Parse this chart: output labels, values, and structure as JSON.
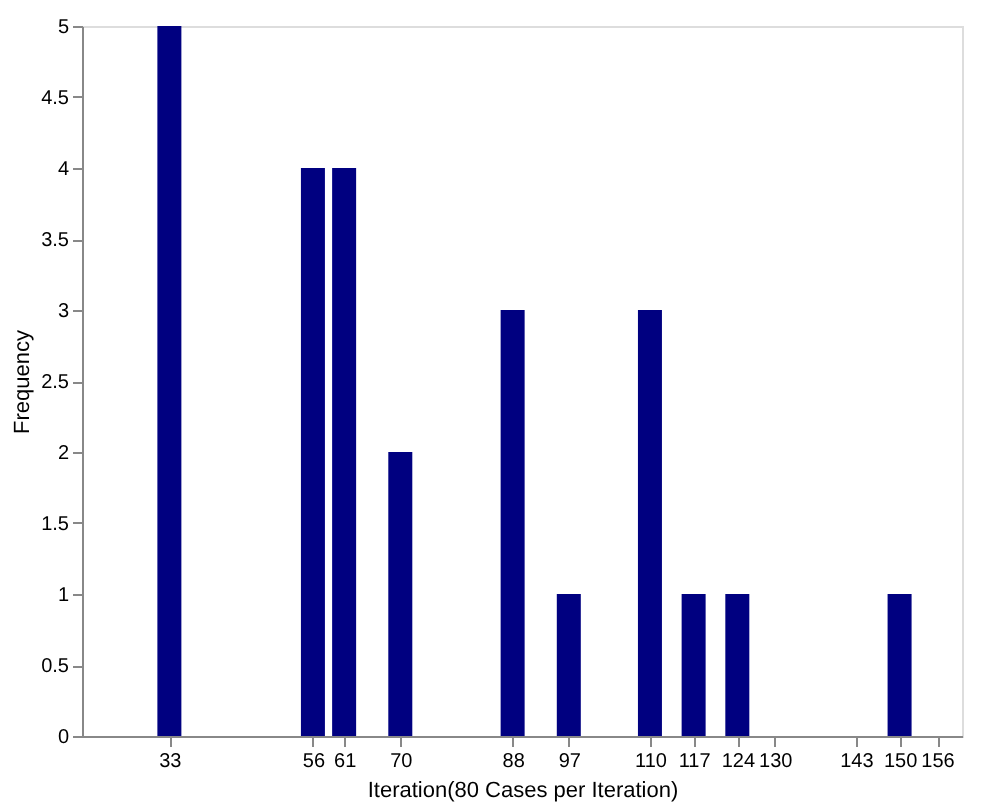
{
  "chart_data": {
    "type": "bar",
    "xlabel": "Iteration(80 Cases per Iteration)",
    "ylabel": "Frequency",
    "x": [
      33,
      56,
      61,
      70,
      88,
      97,
      110,
      117,
      124,
      130,
      143,
      150,
      156
    ],
    "values": [
      5,
      4,
      4,
      2,
      3,
      1,
      3,
      1,
      1,
      0,
      0,
      1,
      0
    ],
    "color": "#000080",
    "xlim": [
      19,
      160
    ],
    "xticks": [
      33,
      56,
      61,
      70,
      88,
      97,
      110,
      117,
      124,
      130,
      143,
      150,
      156
    ],
    "ylim": [
      0,
      5
    ],
    "yticks": [
      0,
      0.5,
      1,
      1.5,
      2,
      2.5,
      3,
      3.5,
      4,
      4.5,
      5
    ],
    "grid": false
  }
}
